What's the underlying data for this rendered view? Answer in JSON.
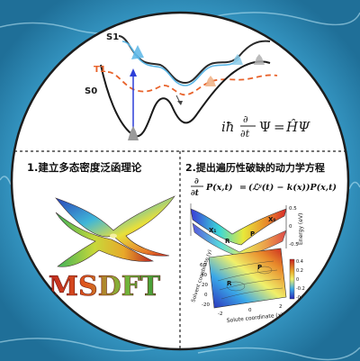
{
  "top_panel": {
    "state_labels": {
      "s1": "S1",
      "t1": "T1",
      "s0": "S0"
    },
    "equation": {
      "prefix": "iħ",
      "partial": "∂",
      "partial_t": "∂t",
      "psi": "Ψ",
      "equals": "=",
      "rhs": "ĤΨ"
    },
    "colors": {
      "s1": "#2a2a2a",
      "s1_inner": "#5ab6e6",
      "t1": "#e8622a",
      "s0": "#1a1a1a",
      "arrow": "#2d3fd8"
    }
  },
  "left_panel": {
    "title": "1.建立多态密度泛函理论",
    "logo_text": "MSDFT"
  },
  "right_panel": {
    "title": "2.提出遍历性破缺的动力学方程",
    "equation": {
      "frac_top": "∂",
      "frac_bottom": "∂t",
      "lhs": "P(x,t)",
      "equals": "=",
      "rhs": "(ℒʸ(t) − k(x))P(x,t)"
    },
    "surface_labels": {
      "x0": "X₀",
      "x1": "X₁",
      "r": "R",
      "p": "P"
    },
    "energy_axis": {
      "label": "Energy (eV)",
      "ticks": [
        "0.5",
        "0",
        "-0.5"
      ]
    },
    "contour_y_axis": {
      "label": "Solvent coordinate (y)",
      "ticks": [
        "60",
        "40",
        "20",
        "0",
        "-20"
      ]
    },
    "contour_x_axis": {
      "label": "Solute coordinate (x)",
      "ticks": [
        "-2",
        "0",
        "2"
      ]
    },
    "colorbar_ticks": [
      "0.4",
      "0.2",
      "0",
      "-0.2",
      "-0.4"
    ]
  }
}
